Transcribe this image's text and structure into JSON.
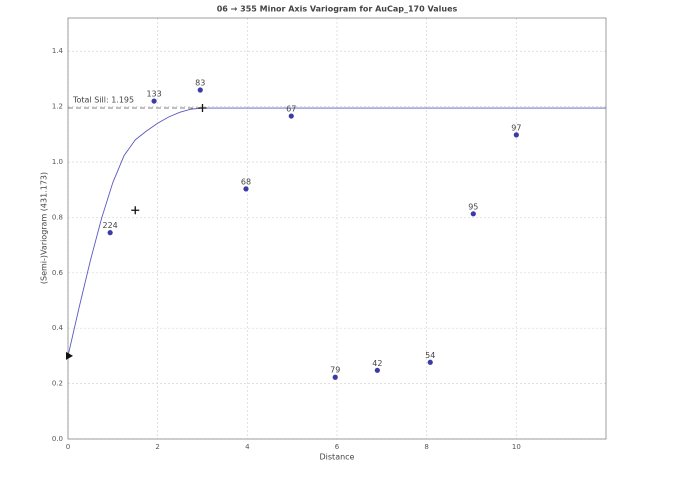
{
  "chart_data": {
    "type": "scatter",
    "title": "06 → 355 Minor Axis Variogram for AuCap_170 Values",
    "x_label": "Distance",
    "y_label": "(Semi-)Variogram (431.173)",
    "xlim": [
      0,
      12
    ],
    "ylim": [
      0,
      1.52
    ],
    "xticks": [
      0,
      2,
      4,
      6,
      8,
      10
    ],
    "yticks": [
      {
        "value": 0,
        "label": "0.0"
      },
      {
        "value": 0.2,
        "label": "0.2"
      },
      {
        "value": 0.4,
        "label": "0.4"
      },
      {
        "value": 0.6,
        "label": "0.6"
      },
      {
        "value": 0.8,
        "label": "0.8"
      },
      {
        "value": 1.0,
        "label": "1.0"
      },
      {
        "value": 1.2,
        "label": "1.2"
      },
      {
        "value": 1.4,
        "label": "1.4"
      }
    ],
    "grid": true,
    "color": "#3b3ba6",
    "x": [
      0.94,
      1.92,
      2.95,
      3.97,
      4.98,
      5.96,
      6.9,
      8.08,
      9.04,
      10.0
    ],
    "values": [
      0.745,
      1.22,
      1.26,
      0.903,
      1.166,
      0.223,
      0.248,
      0.277,
      0.813,
      1.098
    ],
    "counts": [
      224,
      133,
      83,
      68,
      67,
      79,
      42,
      54,
      95,
      97
    ],
    "model": {
      "color": "#5a5ac0",
      "x": [
        0,
        0.25,
        0.5,
        0.75,
        1,
        1.25,
        1.5,
        1.75,
        2,
        2.25,
        2.5,
        2.75,
        3,
        12
      ],
      "values": [
        0.3,
        0.476,
        0.645,
        0.797,
        0.926,
        1.023,
        1.08,
        1.112,
        1.14,
        1.163,
        1.18,
        1.191,
        1.195,
        1.195
      ]
    },
    "sill": 1.195,
    "sill_label": "Total Sill: 1.195",
    "nugget": 0.3,
    "range_markers": {
      "x": [
        1.5,
        3
      ],
      "values": [
        0.826,
        1.195
      ]
    }
  }
}
